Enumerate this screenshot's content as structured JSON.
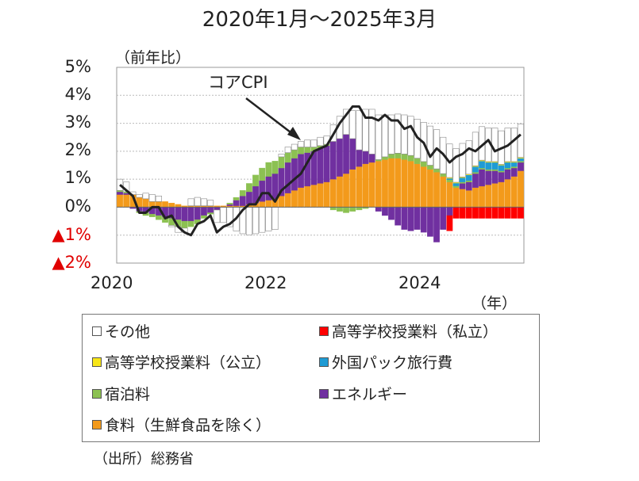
{
  "chart_data": {
    "type": "bar",
    "title": "2020年1月～2025年3月",
    "ylabel": "（前年比）",
    "xunit": "（年）",
    "ylim": [
      -2,
      5
    ],
    "yticks": [
      {
        "v": 5,
        "label": "5%"
      },
      {
        "v": 4,
        "label": "4%"
      },
      {
        "v": 3,
        "label": "3%"
      },
      {
        "v": 2,
        "label": "2%"
      },
      {
        "v": 1,
        "label": "1%"
      },
      {
        "v": 0,
        "label": "0%"
      },
      {
        "v": -1,
        "label": "▲1%"
      },
      {
        "v": -2,
        "label": "▲2%"
      }
    ],
    "xticks": [
      {
        "i": 0,
        "label": "2020"
      },
      {
        "i": 24,
        "label": "2022"
      },
      {
        "i": 48,
        "label": "2024"
      }
    ],
    "months": [
      "2020-01",
      "2020-02",
      "2020-03",
      "2020-04",
      "2020-05",
      "2020-06",
      "2020-07",
      "2020-08",
      "2020-09",
      "2020-10",
      "2020-11",
      "2020-12",
      "2021-01",
      "2021-02",
      "2021-03",
      "2021-04",
      "2021-05",
      "2021-06",
      "2021-07",
      "2021-08",
      "2021-09",
      "2021-10",
      "2021-11",
      "2021-12",
      "2022-01",
      "2022-02",
      "2022-03",
      "2022-04",
      "2022-05",
      "2022-06",
      "2022-07",
      "2022-08",
      "2022-09",
      "2022-10",
      "2022-11",
      "2022-12",
      "2023-01",
      "2023-02",
      "2023-03",
      "2023-04",
      "2023-05",
      "2023-06",
      "2023-07",
      "2023-08",
      "2023-09",
      "2023-10",
      "2023-11",
      "2023-12",
      "2024-01",
      "2024-02",
      "2024-03",
      "2024-04",
      "2024-05",
      "2024-06",
      "2024-07",
      "2024-08",
      "2024-09",
      "2024-10",
      "2024-11",
      "2024-12",
      "2025-01",
      "2025-02",
      "2025-03"
    ],
    "callout": "コアCPI",
    "series": [
      {
        "name": "食料（生鮮食品を除く）",
        "color": "#f39a1b",
        "values": [
          0.45,
          0.45,
          0.45,
          0.35,
          0.3,
          0.2,
          0.2,
          0.2,
          0.15,
          0.1,
          0.05,
          0.05,
          0.05,
          0.05,
          0.05,
          0.05,
          0.05,
          0.05,
          0.05,
          0.05,
          0.1,
          0.15,
          0.2,
          0.25,
          0.3,
          0.4,
          0.5,
          0.6,
          0.7,
          0.75,
          0.8,
          0.85,
          0.9,
          1.0,
          1.1,
          1.2,
          1.35,
          1.45,
          1.55,
          1.6,
          1.65,
          1.7,
          1.75,
          1.75,
          1.7,
          1.65,
          1.55,
          1.45,
          1.35,
          1.25,
          1.1,
          0.9,
          0.7,
          0.65,
          0.6,
          0.7,
          0.75,
          0.8,
          0.85,
          0.9,
          1.0,
          1.1,
          1.3
        ]
      },
      {
        "name": "エネルギー",
        "color": "#7030a0",
        "values": [
          0.1,
          0.05,
          -0.05,
          -0.15,
          -0.2,
          -0.25,
          -0.3,
          -0.35,
          -0.4,
          -0.45,
          -0.5,
          -0.5,
          -0.45,
          -0.3,
          -0.2,
          -0.1,
          0.0,
          0.05,
          0.2,
          0.35,
          0.45,
          0.6,
          0.75,
          0.85,
          0.9,
          1.0,
          1.1,
          1.15,
          1.2,
          1.2,
          1.2,
          1.25,
          1.3,
          1.35,
          1.35,
          1.4,
          1.1,
          0.6,
          0.45,
          0.3,
          -0.15,
          -0.3,
          -0.45,
          -0.65,
          -0.8,
          -0.85,
          -0.8,
          -0.9,
          -1.05,
          -1.25,
          -0.8,
          -0.3,
          0.0,
          0.2,
          0.3,
          0.5,
          0.6,
          0.5,
          0.45,
          0.35,
          0.35,
          0.3,
          0.3
        ]
      },
      {
        "name": "宿泊料",
        "color": "#8cc152",
        "values": [
          0.05,
          0.05,
          0.0,
          -0.05,
          -0.1,
          -0.1,
          -0.15,
          -0.2,
          -0.25,
          -0.25,
          -0.25,
          -0.2,
          -0.15,
          -0.1,
          -0.05,
          0.0,
          0.0,
          0.05,
          0.1,
          0.2,
          0.3,
          0.4,
          0.45,
          0.5,
          0.45,
          0.4,
          0.35,
          0.3,
          0.25,
          0.2,
          0.15,
          0.1,
          0.05,
          -0.1,
          -0.15,
          -0.2,
          -0.15,
          -0.1,
          -0.05,
          0.0,
          0.05,
          0.1,
          0.15,
          0.18,
          0.2,
          0.2,
          0.2,
          0.18,
          0.15,
          0.12,
          0.1,
          0.08,
          0.06,
          0.05,
          0.05,
          0.05,
          0.05,
          0.05,
          0.05,
          0.05,
          0.05,
          0.05,
          0.05
        ]
      },
      {
        "name": "外国パック旅行費",
        "color": "#1f9bd4",
        "values": [
          0,
          0,
          0,
          0,
          0,
          0,
          0,
          0,
          0,
          0,
          0,
          0,
          0,
          0,
          0,
          0,
          0,
          0,
          0,
          0,
          0,
          0,
          0,
          0,
          0,
          0,
          0,
          0,
          0,
          0,
          0,
          0,
          0,
          0,
          0,
          0,
          0,
          0,
          0,
          0,
          0,
          0,
          0,
          0,
          0,
          0,
          0,
          0,
          0,
          0,
          0,
          0.05,
          0.1,
          0.15,
          0.2,
          0.2,
          0.25,
          0.25,
          0.25,
          0.2,
          0.2,
          0.15,
          0.1
        ]
      },
      {
        "name": "高等学校授業料（公立）",
        "color": "#f7e617",
        "values": [
          0,
          0,
          0,
          0,
          0,
          0,
          0,
          0,
          0,
          0,
          0,
          0,
          0,
          0,
          0,
          0,
          0,
          0,
          0,
          0,
          0,
          0,
          0,
          0,
          0,
          0,
          0,
          0,
          0,
          0,
          0,
          0,
          0,
          0,
          0,
          0,
          0,
          0,
          0,
          0,
          0,
          0,
          0,
          0,
          0,
          0,
          0,
          0,
          0,
          0,
          0,
          0.03,
          0.03,
          0.03,
          0.03,
          0.03,
          0.03,
          0.03,
          0.03,
          0.03,
          0.03,
          0.03,
          0.03
        ]
      },
      {
        "name": "高等学校授業料（私立）",
        "color": "#ff0000",
        "values": [
          0,
          0,
          0,
          0,
          0,
          0,
          0,
          0,
          0,
          0,
          0,
          0,
          0,
          0,
          0,
          0,
          0,
          0,
          0,
          0,
          0,
          0,
          0,
          0,
          0,
          0,
          0,
          0,
          0,
          0,
          0,
          0,
          0,
          0,
          0,
          0,
          0,
          0,
          0,
          0,
          0,
          0,
          0,
          0,
          0,
          0,
          0,
          0,
          0,
          0,
          0,
          -0.55,
          -0.4,
          -0.4,
          -0.4,
          -0.4,
          -0.4,
          -0.4,
          -0.4,
          -0.4,
          -0.4,
          -0.4,
          -0.4
        ]
      },
      {
        "name": "その他",
        "color": "#ffffff",
        "values": [
          0.4,
          0.35,
          0.1,
          0.1,
          0.2,
          0.25,
          0.2,
          0.0,
          -0.05,
          -0.2,
          -0.15,
          0.25,
          0.3,
          0.25,
          0.2,
          -0.45,
          -0.55,
          -0.7,
          -0.85,
          -0.95,
          -1.0,
          -0.95,
          -0.9,
          -0.85,
          -0.8,
          0.1,
          0.2,
          0.2,
          0.2,
          0.25,
          0.25,
          0.3,
          0.3,
          0.6,
          0.8,
          0.9,
          1.0,
          1.4,
          1.5,
          1.6,
          1.6,
          1.5,
          1.4,
          1.4,
          1.4,
          1.4,
          1.4,
          1.4,
          1.4,
          1.4,
          1.3,
          1.2,
          1.2,
          1.2,
          1.2,
          1.2,
          1.2,
          1.2,
          1.2,
          1.2,
          1.2,
          1.2,
          1.2
        ]
      }
    ],
    "line": {
      "name": "コアCPI",
      "color": "#222222",
      "values": [
        0.8,
        0.6,
        0.4,
        -0.2,
        -0.2,
        0.0,
        0.0,
        -0.4,
        -0.3,
        -0.7,
        -0.9,
        -1.0,
        -0.6,
        -0.5,
        -0.3,
        -0.9,
        -0.7,
        -0.6,
        -0.4,
        -0.1,
        0.1,
        0.1,
        0.5,
        0.5,
        0.2,
        0.6,
        0.8,
        1.0,
        1.2,
        1.6,
        2.0,
        2.1,
        2.2,
        2.6,
        3.0,
        3.3,
        3.6,
        3.6,
        3.2,
        3.2,
        3.1,
        3.3,
        3.1,
        3.1,
        2.8,
        2.9,
        2.5,
        2.3,
        1.8,
        2.1,
        1.9,
        1.6,
        1.8,
        1.9,
        2.1,
        2.0,
        2.2,
        2.4,
        2.0,
        2.1,
        2.2,
        2.4,
        2.6
      ]
    }
  },
  "legend": [
    {
      "label": "その他",
      "color": "#ffffff"
    },
    {
      "label": "高等学校授業料（私立）",
      "color": "#ff0000"
    },
    {
      "label": "高等学校授業料（公立）",
      "color": "#f7e617"
    },
    {
      "label": "外国パック旅行費",
      "color": "#1f9bd4"
    },
    {
      "label": "宿泊料",
      "color": "#8cc152"
    },
    {
      "label": "エネルギー",
      "color": "#7030a0"
    },
    {
      "label": "食料（生鮮食品を除く）",
      "color": "#f39a1b"
    }
  ],
  "source": "（出所）総務省"
}
